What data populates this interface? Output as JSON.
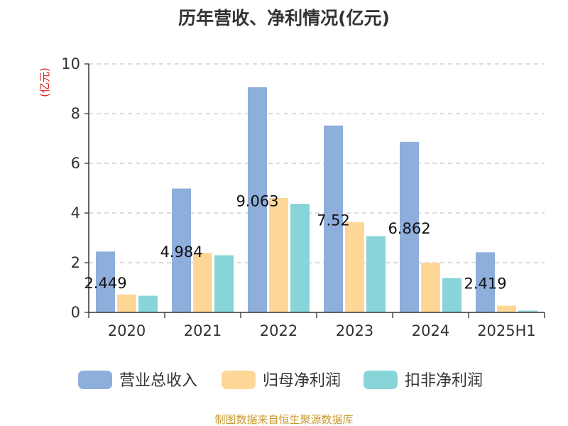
{
  "chart_data": {
    "type": "bar",
    "title": "历年营收、净利情况(亿元)",
    "unit_label": "(亿元)",
    "categories": [
      "2020",
      "2021",
      "2022",
      "2023",
      "2024",
      "2025H1"
    ],
    "series": [
      {
        "name": "营业总收入",
        "values": [
          2.449,
          4.984,
          9.063,
          7.52,
          6.862,
          2.419
        ],
        "color": "#8eaedb",
        "labels": [
          "2.449",
          "4.984",
          "9.063",
          "7.52",
          "6.862",
          "2.419"
        ]
      },
      {
        "name": "归母净利润",
        "values": [
          0.72,
          2.4,
          4.6,
          3.63,
          2.0,
          0.27
        ],
        "color": "#fed797"
      },
      {
        "name": "扣非净利润",
        "values": [
          0.67,
          2.3,
          4.37,
          3.07,
          1.38,
          0.07
        ],
        "color": "#88d5d9"
      }
    ],
    "ylim": [
      0,
      10
    ],
    "yticks": [
      "0",
      "2",
      "4",
      "6",
      "8",
      "10"
    ],
    "grid": true,
    "legend_position": "bottom"
  },
  "source_text": "制图数据来自恒生聚源数据库"
}
